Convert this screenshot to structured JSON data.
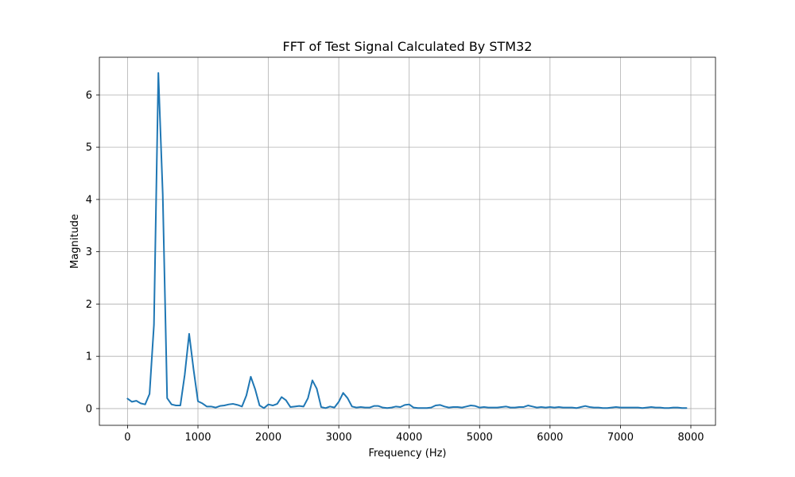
{
  "chart_data": {
    "type": "line",
    "title": "FFT of Test Signal Calculated By STM32",
    "xlabel": "Frequency (Hz)",
    "ylabel": "Magnitude",
    "xlim": [
      -400,
      8350
    ],
    "ylim": [
      -0.32,
      6.72
    ],
    "x_ticks": [
      0,
      1000,
      2000,
      3000,
      4000,
      5000,
      6000,
      7000,
      8000
    ],
    "y_ticks": [
      0,
      1,
      2,
      3,
      4,
      5,
      6
    ],
    "grid": true,
    "series": [
      {
        "color": "#1f77b4",
        "x": [
          0,
          62.5,
          125,
          187.5,
          250,
          312.5,
          375,
          437.5,
          500,
          562.5,
          625,
          687.5,
          750,
          812.5,
          875,
          937.5,
          1000,
          1062.5,
          1125,
          1187.5,
          1250,
          1312.5,
          1375,
          1437.5,
          1500,
          1562.5,
          1625,
          1687.5,
          1750,
          1812.5,
          1875,
          1937.5,
          2000,
          2062.5,
          2125,
          2187.5,
          2250,
          2312.5,
          2375,
          2437.5,
          2500,
          2562.5,
          2625,
          2687.5,
          2750,
          2812.5,
          2875,
          2937.5,
          3000,
          3062.5,
          3125,
          3187.5,
          3250,
          3312.5,
          3375,
          3437.5,
          3500,
          3562.5,
          3625,
          3687.5,
          3750,
          3812.5,
          3875,
          3937.5,
          4000,
          4062.5,
          4125,
          4187.5,
          4250,
          4312.5,
          4375,
          4437.5,
          4500,
          4562.5,
          4625,
          4687.5,
          4750,
          4812.5,
          4875,
          4937.5,
          5000,
          5062.5,
          5125,
          5187.5,
          5250,
          5312.5,
          5375,
          5437.5,
          5500,
          5562.5,
          5625,
          5687.5,
          5750,
          5812.5,
          5875,
          5937.5,
          6000,
          6062.5,
          6125,
          6187.5,
          6250,
          6312.5,
          6375,
          6437.5,
          6500,
          6562.5,
          6625,
          6687.5,
          6750,
          6812.5,
          6875,
          6937.5,
          7000,
          7062.5,
          7125,
          7187.5,
          7250,
          7312.5,
          7375,
          7437.5,
          7500,
          7562.5,
          7625,
          7687.5,
          7750,
          7812.5,
          7875,
          7937.5
        ],
        "y": [
          0.19,
          0.13,
          0.15,
          0.1,
          0.08,
          0.28,
          1.6,
          6.42,
          4.1,
          0.2,
          0.08,
          0.06,
          0.06,
          0.65,
          1.43,
          0.75,
          0.14,
          0.1,
          0.04,
          0.04,
          0.02,
          0.05,
          0.06,
          0.08,
          0.09,
          0.07,
          0.04,
          0.25,
          0.61,
          0.37,
          0.06,
          0.01,
          0.08,
          0.06,
          0.09,
          0.22,
          0.16,
          0.03,
          0.04,
          0.05,
          0.04,
          0.2,
          0.54,
          0.38,
          0.03,
          0.01,
          0.04,
          0.02,
          0.13,
          0.3,
          0.2,
          0.04,
          0.02,
          0.03,
          0.02,
          0.02,
          0.05,
          0.05,
          0.02,
          0.01,
          0.02,
          0.04,
          0.03,
          0.07,
          0.08,
          0.02,
          0.01,
          0.01,
          0.01,
          0.02,
          0.06,
          0.07,
          0.04,
          0.02,
          0.03,
          0.03,
          0.02,
          0.04,
          0.06,
          0.05,
          0.02,
          0.03,
          0.02,
          0.02,
          0.02,
          0.03,
          0.04,
          0.02,
          0.02,
          0.03,
          0.03,
          0.06,
          0.04,
          0.02,
          0.03,
          0.02,
          0.03,
          0.02,
          0.03,
          0.02,
          0.02,
          0.02,
          0.01,
          0.03,
          0.05,
          0.03,
          0.02,
          0.02,
          0.01,
          0.01,
          0.02,
          0.03,
          0.02,
          0.02,
          0.02,
          0.02,
          0.02,
          0.01,
          0.02,
          0.03,
          0.02,
          0.02,
          0.01,
          0.01,
          0.02,
          0.02,
          0.01,
          0.01
        ]
      }
    ]
  }
}
